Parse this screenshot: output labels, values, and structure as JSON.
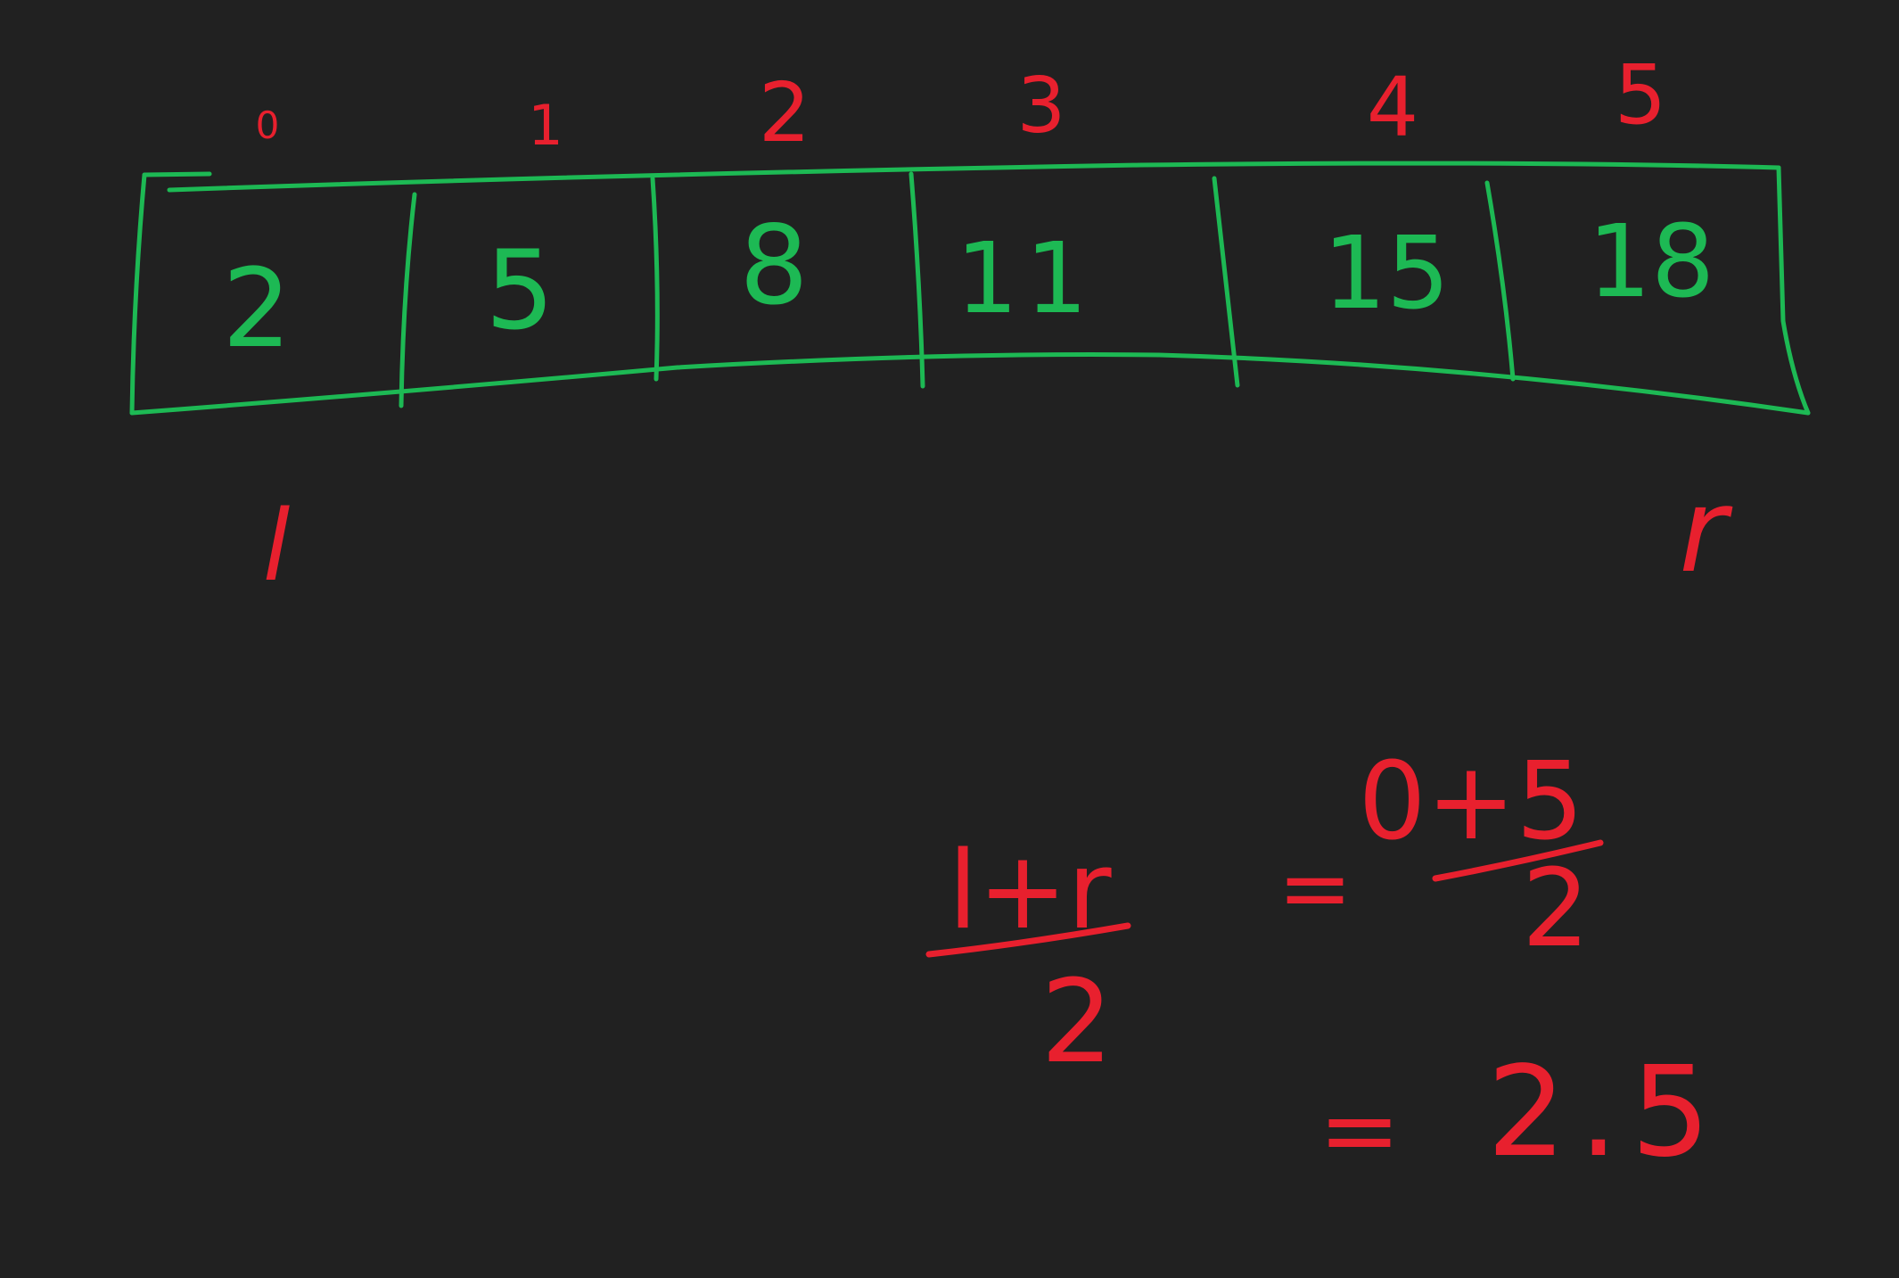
{
  "canvas_background": "#212121",
  "colors": {
    "array_ink": "#1db954",
    "annotation_ink": "#e8202e"
  },
  "array": {
    "indices": [
      "0",
      "1",
      "2",
      "3",
      "4",
      "5"
    ],
    "values": [
      "2",
      "5",
      "8",
      "11",
      "15",
      "18"
    ]
  },
  "pointers": {
    "left": "l",
    "right": "r"
  },
  "formula": {
    "numerator": "l+r",
    "denominator": "2",
    "sub_equals": "=",
    "sub_numerator": "0+5",
    "sub_denominator": "2",
    "result_equals": "=",
    "result": "2.5"
  }
}
